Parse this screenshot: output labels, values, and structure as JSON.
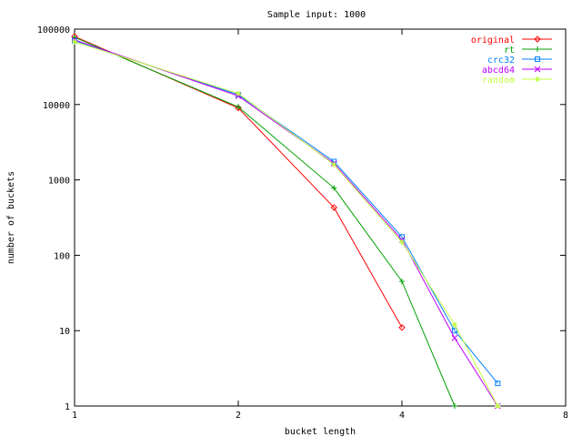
{
  "chart_data": {
    "type": "line",
    "title": "Sample input: 1000",
    "xlabel": "bucket length",
    "ylabel": "number of buckets",
    "x_scale": "log2",
    "y_scale": "log10",
    "xlim": [
      1,
      8
    ],
    "ylim": [
      1,
      100000
    ],
    "x_ticks": [
      1,
      2,
      4,
      8
    ],
    "y_ticks": [
      1,
      10,
      100,
      1000,
      10000,
      100000
    ],
    "grid": false,
    "legend_position": "top-right",
    "series": [
      {
        "name": "original",
        "color": "#ff0000",
        "marker": "diamond",
        "points": [
          [
            1,
            80000
          ],
          [
            2,
            9000
          ],
          [
            3,
            430
          ],
          [
            4,
            11
          ]
        ]
      },
      {
        "name": "rt",
        "color": "#00a000",
        "marker": "plus",
        "points": [
          [
            1,
            78000
          ],
          [
            2,
            9300
          ],
          [
            3,
            780
          ],
          [
            4,
            45
          ],
          [
            5,
            1
          ]
        ]
      },
      {
        "name": "crc32",
        "color": "#0080ff",
        "marker": "square",
        "points": [
          [
            1,
            70000
          ],
          [
            2,
            13500
          ],
          [
            3,
            1750
          ],
          [
            4,
            175
          ],
          [
            5,
            10
          ],
          [
            6,
            2
          ]
        ]
      },
      {
        "name": "abcd64",
        "color": "#c000ff",
        "marker": "cross",
        "points": [
          [
            1,
            72000
          ],
          [
            2,
            13000
          ],
          [
            3,
            1650
          ],
          [
            4,
            160
          ],
          [
            5,
            8
          ],
          [
            6,
            1
          ]
        ]
      },
      {
        "name": "random",
        "color": "#c0ff40",
        "marker": "star",
        "points": [
          [
            1,
            68000
          ],
          [
            2,
            14000
          ],
          [
            3,
            1600
          ],
          [
            4,
            150
          ],
          [
            5,
            12
          ],
          [
            6,
            1
          ]
        ]
      }
    ]
  }
}
